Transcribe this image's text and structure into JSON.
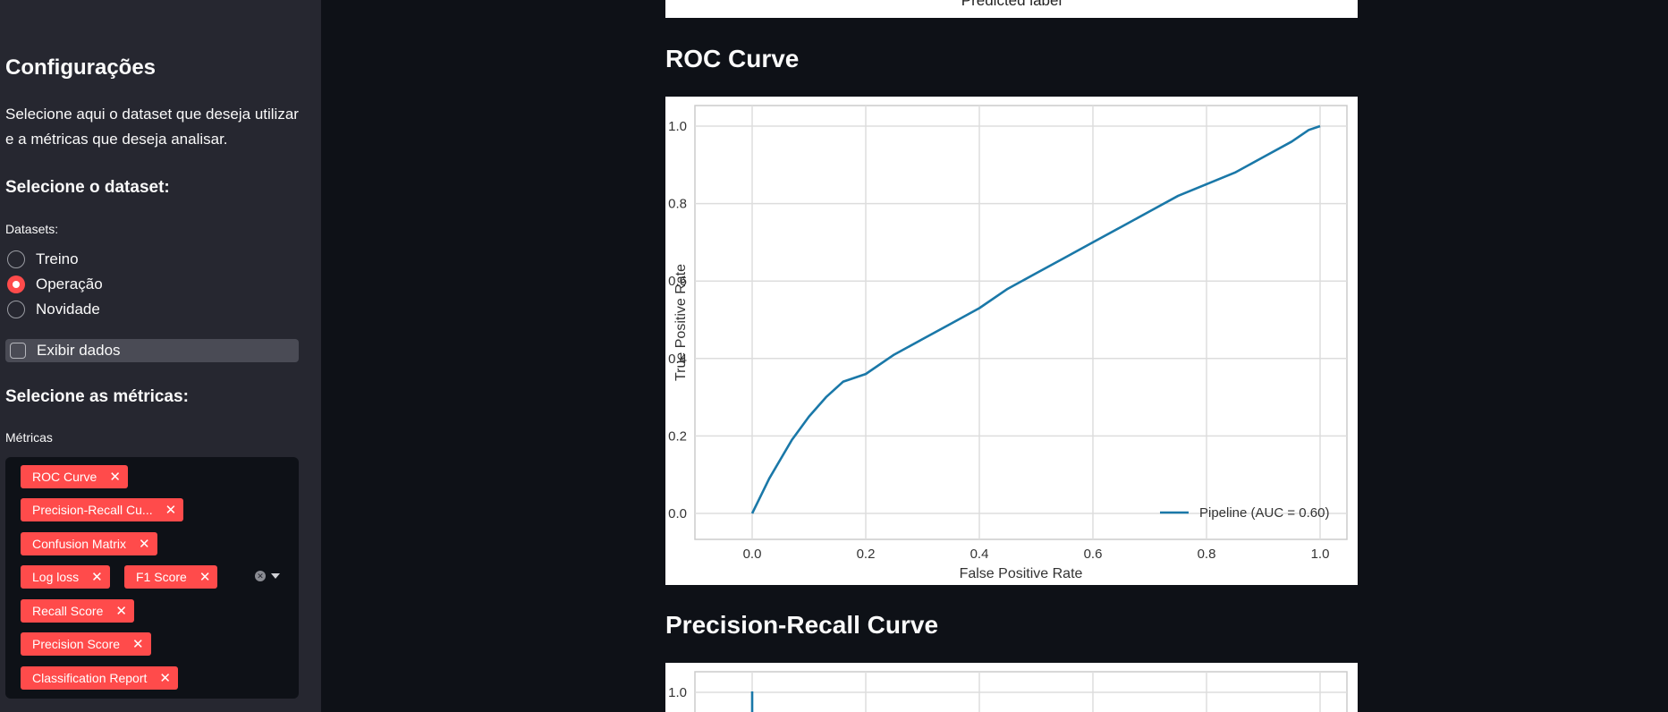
{
  "sidebar": {
    "title": "Configurações",
    "description": "Selecione aqui o dataset que deseja utilizar e a métricas que deseja analisar.",
    "dataset_heading": "Selecione o dataset:",
    "datasets_label": "Datasets:",
    "dataset_options": [
      {
        "label": "Treino",
        "checked": false
      },
      {
        "label": "Operação",
        "checked": true
      },
      {
        "label": "Novidade",
        "checked": false
      }
    ],
    "show_data_label": "Exibir dados",
    "show_data_checked": false,
    "metrics_heading": "Selecione as métricas:",
    "metrics_label": "Métricas",
    "selected_metrics": [
      "ROC Curve",
      "Precision-Recall Cu...",
      "Confusion Matrix",
      "Log loss",
      "F1 Score",
      "Recall Score",
      "Precision Score",
      "Classification Report"
    ],
    "accent_color": "#ff4b4b"
  },
  "main": {
    "previous_chart_xlabel": "Predicted label",
    "roc_title": "ROC Curve",
    "pr_title": "Precision-Recall Curve"
  },
  "chart_data": [
    {
      "type": "line",
      "title": "",
      "xlabel": "False Positive Rate",
      "ylabel": "True Positive Rate",
      "xlim": [
        0.0,
        1.0
      ],
      "ylim": [
        0.0,
        1.0
      ],
      "xticks": [
        "0.0",
        "0.2",
        "0.4",
        "0.6",
        "0.8",
        "1.0"
      ],
      "yticks": [
        "0.0",
        "0.2",
        "0.4",
        "0.6",
        "0.8",
        "1.0"
      ],
      "grid": true,
      "legend_position": "lower-right",
      "series": [
        {
          "name": "Pipeline (AUC = 0.60)",
          "color": "#1a78a8",
          "x": [
            0.0,
            0.01,
            0.02,
            0.03,
            0.05,
            0.07,
            0.1,
            0.13,
            0.16,
            0.2,
            0.25,
            0.3,
            0.35,
            0.4,
            0.45,
            0.5,
            0.55,
            0.6,
            0.65,
            0.7,
            0.75,
            0.8,
            0.85,
            0.9,
            0.95,
            0.98,
            1.0
          ],
          "y": [
            0.0,
            0.03,
            0.06,
            0.09,
            0.14,
            0.19,
            0.25,
            0.3,
            0.34,
            0.36,
            0.41,
            0.45,
            0.49,
            0.53,
            0.58,
            0.62,
            0.66,
            0.7,
            0.74,
            0.78,
            0.82,
            0.85,
            0.88,
            0.92,
            0.96,
            0.99,
            1.0
          ]
        }
      ]
    },
    {
      "type": "line",
      "title": "",
      "xlabel": "",
      "ylabel": "",
      "yticks": [
        "1.0"
      ],
      "grid": true,
      "series": []
    }
  ]
}
